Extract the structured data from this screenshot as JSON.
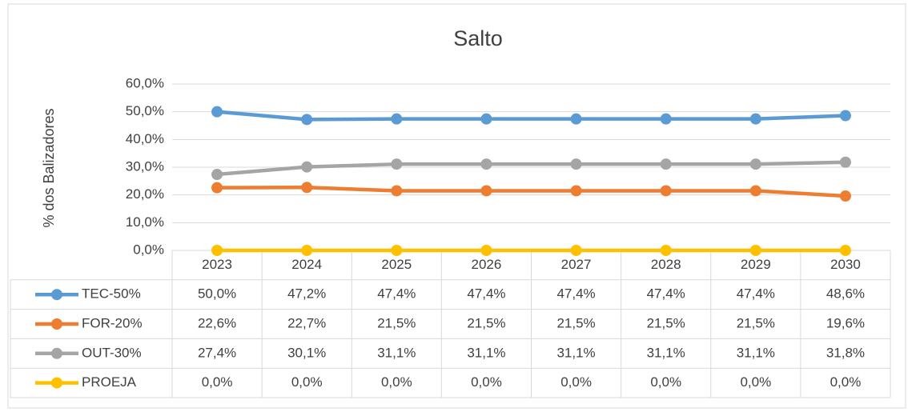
{
  "chart_data": {
    "type": "line",
    "title": "Salto",
    "y_label": "% dos Balizadores",
    "categories": [
      "2023",
      "2024",
      "2025",
      "2026",
      "2027",
      "2028",
      "2029",
      "2030"
    ],
    "series": [
      {
        "name": "TEC-50%",
        "color": "#5b9bd5",
        "values": [
          50.0,
          47.2,
          47.4,
          47.4,
          47.4,
          47.4,
          47.4,
          48.6
        ],
        "value_labels": [
          "50,0%",
          "47,2%",
          "47,4%",
          "47,4%",
          "47,4%",
          "47,4%",
          "47,4%",
          "48,6%"
        ]
      },
      {
        "name": "FOR-20%",
        "color": "#ed7d31",
        "values": [
          22.6,
          22.7,
          21.5,
          21.5,
          21.5,
          21.5,
          21.5,
          19.6
        ],
        "value_labels": [
          "22,6%",
          "22,7%",
          "21,5%",
          "21,5%",
          "21,5%",
          "21,5%",
          "21,5%",
          "19,6%"
        ]
      },
      {
        "name": "OUT-30%",
        "color": "#a5a5a5",
        "values": [
          27.4,
          30.1,
          31.1,
          31.1,
          31.1,
          31.1,
          31.1,
          31.8
        ],
        "value_labels": [
          "27,4%",
          "30,1%",
          "31,1%",
          "31,1%",
          "31,1%",
          "31,1%",
          "31,1%",
          "31,8%"
        ]
      },
      {
        "name": "PROEJA",
        "color": "#ffc000",
        "values": [
          0.0,
          0.0,
          0.0,
          0.0,
          0.0,
          0.0,
          0.0,
          0.0
        ],
        "value_labels": [
          "0,0%",
          "0,0%",
          "0,0%",
          "0,0%",
          "0,0%",
          "0,0%",
          "0,0%",
          "0,0%"
        ]
      }
    ],
    "ylim": [
      0,
      60
    ],
    "yticks": [
      {
        "value": 0,
        "label": "0,0%"
      },
      {
        "value": 10,
        "label": "10,0%"
      },
      {
        "value": 20,
        "label": "20,0%"
      },
      {
        "value": 30,
        "label": "30,0%"
      },
      {
        "value": 40,
        "label": "40,0%"
      },
      {
        "value": 50,
        "label": "50,0%"
      },
      {
        "value": 60,
        "label": "60,0%"
      }
    ],
    "grid": true,
    "data_table": true
  }
}
